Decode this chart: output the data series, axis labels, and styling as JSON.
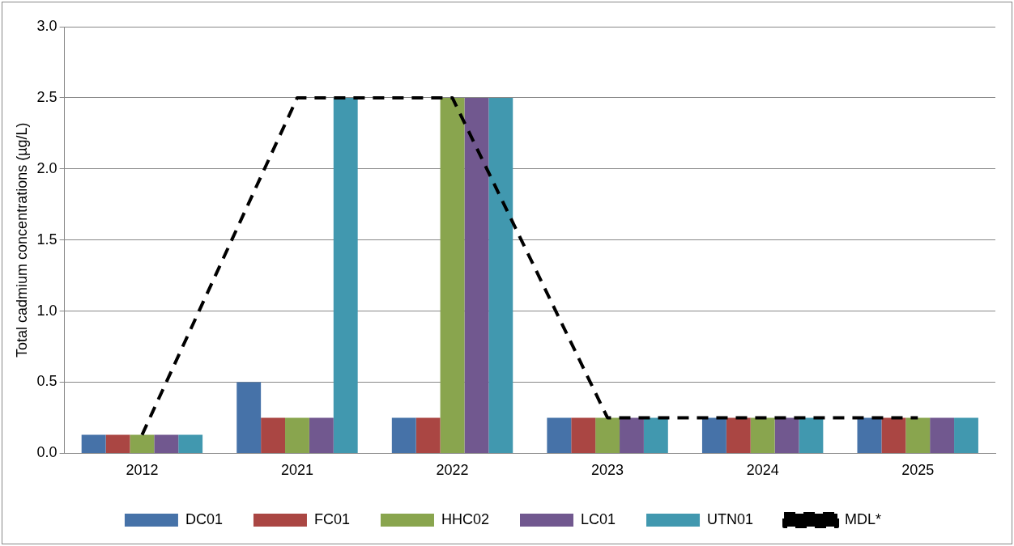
{
  "chart_data": {
    "type": "bar",
    "ylabel": "Total cadmium concentrations (µg/L)",
    "categories": [
      "2012",
      "2021",
      "2022",
      "2023",
      "2024",
      "2025"
    ],
    "series": [
      {
        "name": "DC01",
        "color": "#4672a8",
        "values": [
          0.13,
          0.5,
          0.25,
          0.25,
          0.25,
          0.25
        ]
      },
      {
        "name": "FC01",
        "color": "#aa4643",
        "values": [
          0.13,
          0.25,
          0.25,
          0.25,
          0.25,
          0.25
        ]
      },
      {
        "name": "HHC02",
        "color": "#89a54e",
        "values": [
          0.13,
          0.25,
          2.5,
          0.25,
          0.25,
          0.25
        ]
      },
      {
        "name": "LC01",
        "color": "#71588f",
        "values": [
          0.13,
          0.25,
          2.5,
          0.25,
          0.25,
          0.25
        ]
      },
      {
        "name": "UTN01",
        "color": "#4198af",
        "values": [
          0.13,
          2.5,
          2.5,
          0.25,
          0.25,
          0.25
        ]
      },
      {
        "name": "MDL*",
        "type": "line",
        "color": "#000000",
        "line_style": "dashed",
        "marker": "none",
        "values": [
          0.13,
          2.5,
          2.5,
          0.25,
          0.25,
          0.25
        ]
      }
    ],
    "ylim": [
      0,
      3
    ],
    "yticks": [
      {
        "value": 0,
        "label": "0.0"
      },
      {
        "value": 0.5,
        "label": "0.5"
      },
      {
        "value": 1,
        "label": "1.0"
      },
      {
        "value": 1.5,
        "label": "1.5"
      },
      {
        "value": 2,
        "label": "2.0"
      },
      {
        "value": 2.5,
        "label": "2.5"
      },
      {
        "value": 3,
        "label": "3.0"
      }
    ],
    "grid": "y",
    "legend": "bottom"
  }
}
